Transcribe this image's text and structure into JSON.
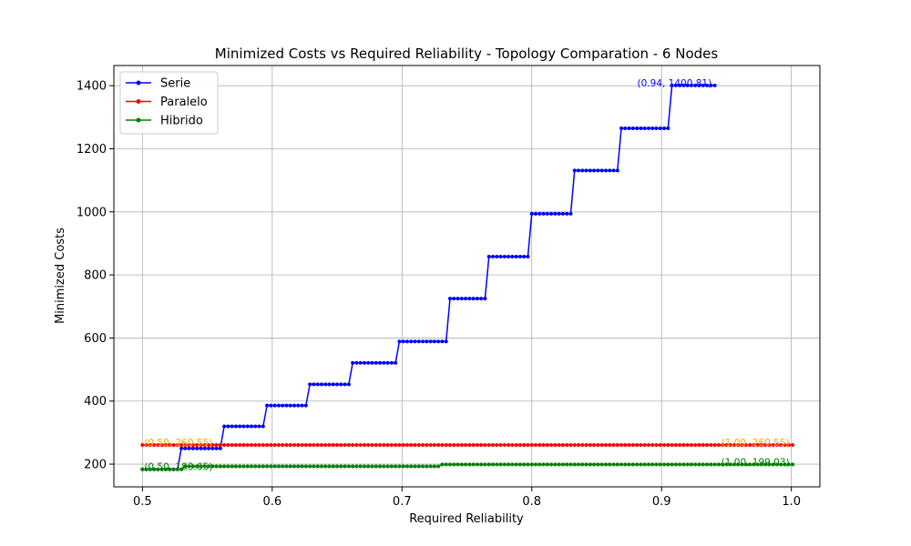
{
  "chart_data": {
    "type": "line",
    "title": "Minimized Costs vs Required Reliability - Topology Comparation - 6 Nodes",
    "xlabel": "Required Reliability",
    "ylabel": "Minimized Costs",
    "xlim": [
      0.478,
      1.022
    ],
    "ylim": [
      128,
      1464
    ],
    "xticks": [
      0.5,
      0.6,
      0.7,
      0.8,
      0.9,
      1.0
    ],
    "xtick_labels": [
      "0.5",
      "0.6",
      "0.7",
      "0.8",
      "0.9",
      "1.0"
    ],
    "yticks": [
      200,
      400,
      600,
      800,
      1000,
      1200,
      1400
    ],
    "ytick_labels": [
      "200",
      "400",
      "600",
      "800",
      "1000",
      "1200",
      "1400"
    ],
    "grid": true,
    "legend_position": "top-left",
    "x_range": [
      0.5,
      1.0
    ],
    "x_step": 0.003,
    "series": [
      {
        "name": "Serie",
        "color": "#0000ff",
        "x_end": 0.94,
        "steps": [
          {
            "from": 0.5,
            "value": 183.65
          },
          {
            "from": 0.53,
            "value": 250
          },
          {
            "from": 0.562,
            "value": 320
          },
          {
            "from": 0.594,
            "value": 386
          },
          {
            "from": 0.627,
            "value": 453
          },
          {
            "from": 0.661,
            "value": 521
          },
          {
            "from": 0.696,
            "value": 589
          },
          {
            "from": 0.736,
            "value": 725
          },
          {
            "from": 0.766,
            "value": 858
          },
          {
            "from": 0.799,
            "value": 994
          },
          {
            "from": 0.833,
            "value": 1131
          },
          {
            "from": 0.868,
            "value": 1265
          },
          {
            "from": 0.906,
            "value": 1400.81
          }
        ]
      },
      {
        "name": "Paralelo",
        "color": "#ff0000",
        "x_end": 1.0,
        "steps": [
          {
            "from": 0.5,
            "value": 260.55
          }
        ]
      },
      {
        "name": "Hibrido",
        "color": "#008000",
        "x_end": 1.0,
        "steps": [
          {
            "from": 0.5,
            "value": 183.65
          },
          {
            "from": 0.531,
            "value": 193
          },
          {
            "from": 0.729,
            "value": 199.03
          }
        ]
      }
    ],
    "annotations": [
      {
        "text": "(0.94, 1400.81)",
        "x": 0.94,
        "y": 1400.81,
        "anchor": "end",
        "color": "#0000ff"
      },
      {
        "text": "(0.50, 260.55)",
        "x": 0.5,
        "y": 260.55,
        "anchor": "start",
        "color": "#ffa500"
      },
      {
        "text": "(1.00, 260.55)",
        "x": 1.0,
        "y": 260.55,
        "anchor": "end",
        "color": "#ffa500"
      },
      {
        "text": "(0.50, 183.65)",
        "x": 0.5,
        "y": 183.65,
        "anchor": "start",
        "color": "#008000"
      },
      {
        "text": "(1.00, 199.03)",
        "x": 1.0,
        "y": 199.03,
        "anchor": "end",
        "color": "#008000"
      }
    ]
  }
}
